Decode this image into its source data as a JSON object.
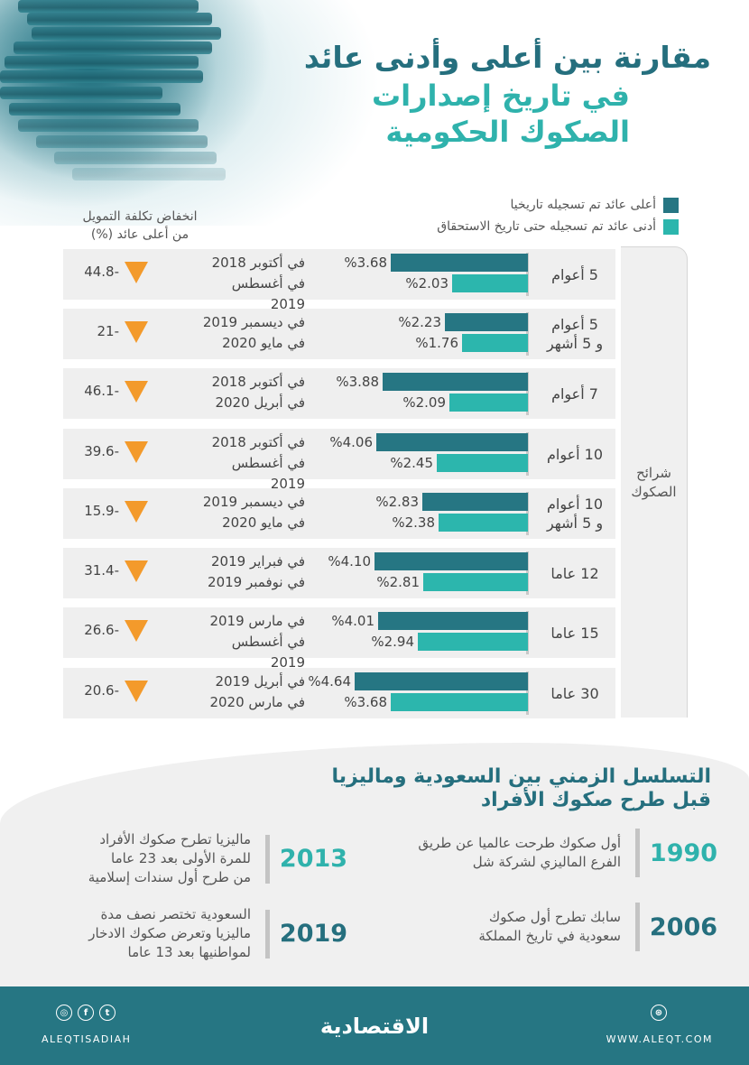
{
  "title": {
    "line1": "مقارنة بين أعلى وأدنى عائد",
    "line2": "في تاريخ إصدارات",
    "line3": "الصكوك الحكومية"
  },
  "legend": {
    "high": {
      "label": "أعلى عائد تم تسجيله تاريخيا",
      "color": "#267683"
    },
    "low": {
      "label": "أدنى عائد تم تسجيله حتى تاريخ الاستحقاق",
      "color": "#2cb6ad"
    }
  },
  "change_header": {
    "line1": "انخفاض تكلفة التمويل",
    "line2": "من أعلى عائد (%)"
  },
  "group_label": {
    "line1": "شرائح",
    "line2": "الصكوك"
  },
  "rows": [
    {
      "label1": "5 أعوام",
      "label2": "",
      "high": "%3.68",
      "low": "%2.03",
      "date_high": "في أكتوبر 2018",
      "date_low": "في أغسطس 2019",
      "change": "44.8-"
    },
    {
      "label1": "5 أعوام",
      "label2": "و 5 أشهر",
      "high": "%2.23",
      "low": "%1.76",
      "date_high": "في ديسمبر 2019",
      "date_low": "في مايو 2020",
      "change": "21-"
    },
    {
      "label1": "7 أعوام",
      "label2": "",
      "high": "%3.88",
      "low": "%2.09",
      "date_high": "في أكتوبر 2018",
      "date_low": "في أبريل 2020",
      "change": "46.1-"
    },
    {
      "label1": "10 أعوام",
      "label2": "",
      "high": "%4.06",
      "low": "%2.45",
      "date_high": "في أكتوبر 2018",
      "date_low": "في أغسطس 2019",
      "change": "39.6-"
    },
    {
      "label1": "10 أعوام",
      "label2": "و 5 أشهر",
      "high": "%2.83",
      "low": "%2.38",
      "date_high": "في ديسمبر 2019",
      "date_low": "في مايو 2020",
      "change": "15.9-"
    },
    {
      "label1": "12 عاما",
      "label2": "",
      "high": "%4.10",
      "low": "%2.81",
      "date_high": "في فبراير 2019",
      "date_low": "في نوفمبر 2019",
      "change": "31.4-"
    },
    {
      "label1": "15 عاما",
      "label2": "",
      "high": "%4.01",
      "low": "%2.94",
      "date_high": "في مارس 2019",
      "date_low": "في أغسطس 2019",
      "change": "26.6-"
    },
    {
      "label1": "30 عاما",
      "label2": "",
      "high": "%4.64",
      "low": "%3.68",
      "date_high": "في أبريل 2019",
      "date_low": "في مارس 2020",
      "change": "20.6-"
    }
  ],
  "timeline": {
    "title1": "التسلسل الزمني بين السعودية وماليزيا",
    "title2": "قبل طرح صكوك الأفراد",
    "items": [
      {
        "year": "1990",
        "color": "#2fb2ac",
        "line1": "أول صكوك طرحت عالميا عن طريق",
        "line2": "الفرع الماليزي لشركة شل",
        "line3": ""
      },
      {
        "year": "2006",
        "color": "#256f7e",
        "line1": "سابك تطرح أول صكوك",
        "line2": "سعودية في تاريخ المملكة",
        "line3": ""
      },
      {
        "year": "2013",
        "color": "#2fb2ac",
        "line1": "ماليزيا تطرح صكوك الأفراد",
        "line2": "للمرة الأولى بعد 23 عاما",
        "line3": "من طرح أول سندات إسلامية"
      },
      {
        "year": "2019",
        "color": "#256f7e",
        "line1": "السعودية تختصر نصف مدة",
        "line2": "ماليزيا وتعرض صكوك الادخار",
        "line3": "لمواطنيها بعد 13 عاما"
      }
    ]
  },
  "footer": {
    "logo": "الاقتصادية",
    "handle": "ALEQTISADIAH",
    "website": "WWW.ALEQT.COM",
    "icons": {
      "instagram": "◎",
      "facebook": "f",
      "twitter": "t",
      "web": "⊛"
    }
  },
  "chart_data": {
    "type": "bar",
    "title": "مقارنة بين أعلى وأدنى عائد في تاريخ إصدارات الصكوك الحكومية",
    "orientation": "horizontal",
    "categories": [
      "5 أعوام",
      "5 أعوام و 5 أشهر",
      "7 أعوام",
      "10 أعوام",
      "10 أعوام و 5 أشهر",
      "12 عاما",
      "15 عاما",
      "30 عاما"
    ],
    "series": [
      {
        "name": "أعلى عائد تم تسجيله تاريخيا",
        "color": "#267683",
        "values": [
          3.68,
          2.23,
          3.88,
          4.06,
          2.83,
          4.1,
          4.01,
          4.64
        ],
        "dates": [
          "أكتوبر 2018",
          "ديسمبر 2019",
          "أكتوبر 2018",
          "أكتوبر 2018",
          "ديسمبر 2019",
          "فبراير 2019",
          "مارس 2019",
          "أبريل 2019"
        ]
      },
      {
        "name": "أدنى عائد تم تسجيله حتى تاريخ الاستحقاق",
        "color": "#2cb6ad",
        "values": [
          2.03,
          1.76,
          2.09,
          2.45,
          2.38,
          2.81,
          2.94,
          3.68
        ],
        "dates": [
          "أغسطس 2019",
          "مايو 2020",
          "أبريل 2020",
          "أغسطس 2019",
          "مايو 2020",
          "نوفمبر 2019",
          "أغسطس 2019",
          "مارس 2020"
        ]
      }
    ],
    "change_pct": [
      -44.8,
      -21,
      -46.1,
      -39.6,
      -15.9,
      -31.4,
      -26.6,
      -20.6
    ],
    "change_label": "انخفاض تكلفة التمويل من أعلى عائد (%)",
    "ylabel": "شرائح الصكوك",
    "unit": "%"
  }
}
